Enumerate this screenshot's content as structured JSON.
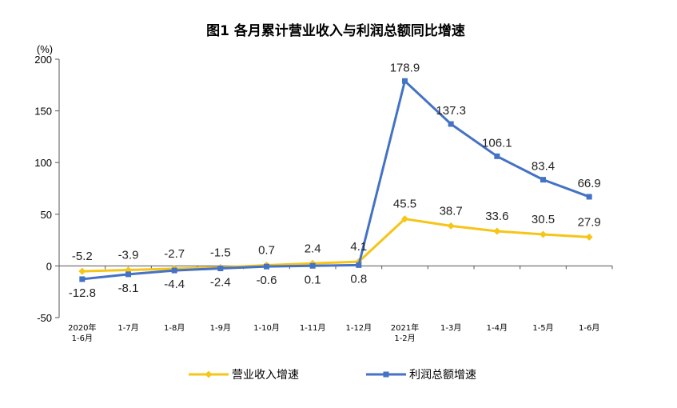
{
  "chart_data": {
    "type": "line",
    "title": "图1  各月累计营业收入与利润总额同比增速",
    "ylabel": "(%)",
    "xlabel": "",
    "ylim": [
      -50,
      200
    ],
    "yticks": [
      "200",
      "150",
      "100",
      "50",
      "0",
      "-50"
    ],
    "categories": [
      [
        "2020年",
        "1-6月"
      ],
      [
        "1-7月"
      ],
      [
        "1-8月"
      ],
      [
        "1-9月"
      ],
      [
        "1-10月"
      ],
      [
        "1-11月"
      ],
      [
        "1-12月"
      ],
      [
        "2021年",
        "1-2月"
      ],
      [
        "1-3月"
      ],
      [
        "1-4月"
      ],
      [
        "1-5月"
      ],
      [
        "1-6月"
      ]
    ],
    "series": [
      {
        "name": "营业收入增速",
        "color": "#f5c518",
        "marker": "diamond",
        "values": [
          -5.2,
          -3.9,
          -2.7,
          -1.5,
          0.7,
          2.4,
          4.1,
          45.5,
          38.7,
          33.6,
          30.5,
          27.9
        ],
        "labels": [
          "-5.2",
          "-3.9",
          "-2.7",
          "-1.5",
          "0.7",
          "2.4",
          "4.1",
          "45.5",
          "38.7",
          "33.6",
          "30.5",
          "27.9"
        ]
      },
      {
        "name": "利润总额增速",
        "color": "#4472c4",
        "marker": "square",
        "values": [
          -12.8,
          -8.1,
          -4.4,
          -2.4,
          -0.6,
          0.1,
          0.8,
          178.9,
          137.3,
          106.1,
          83.4,
          66.9
        ],
        "labels": [
          "-12.8",
          "-8.1",
          "-4.4",
          "-2.4",
          "-0.6",
          "0.1",
          "0.8",
          "178.9",
          "137.3",
          "106.1",
          "83.4",
          "66.9"
        ]
      }
    ],
    "grid": false,
    "legend": "bottom"
  }
}
